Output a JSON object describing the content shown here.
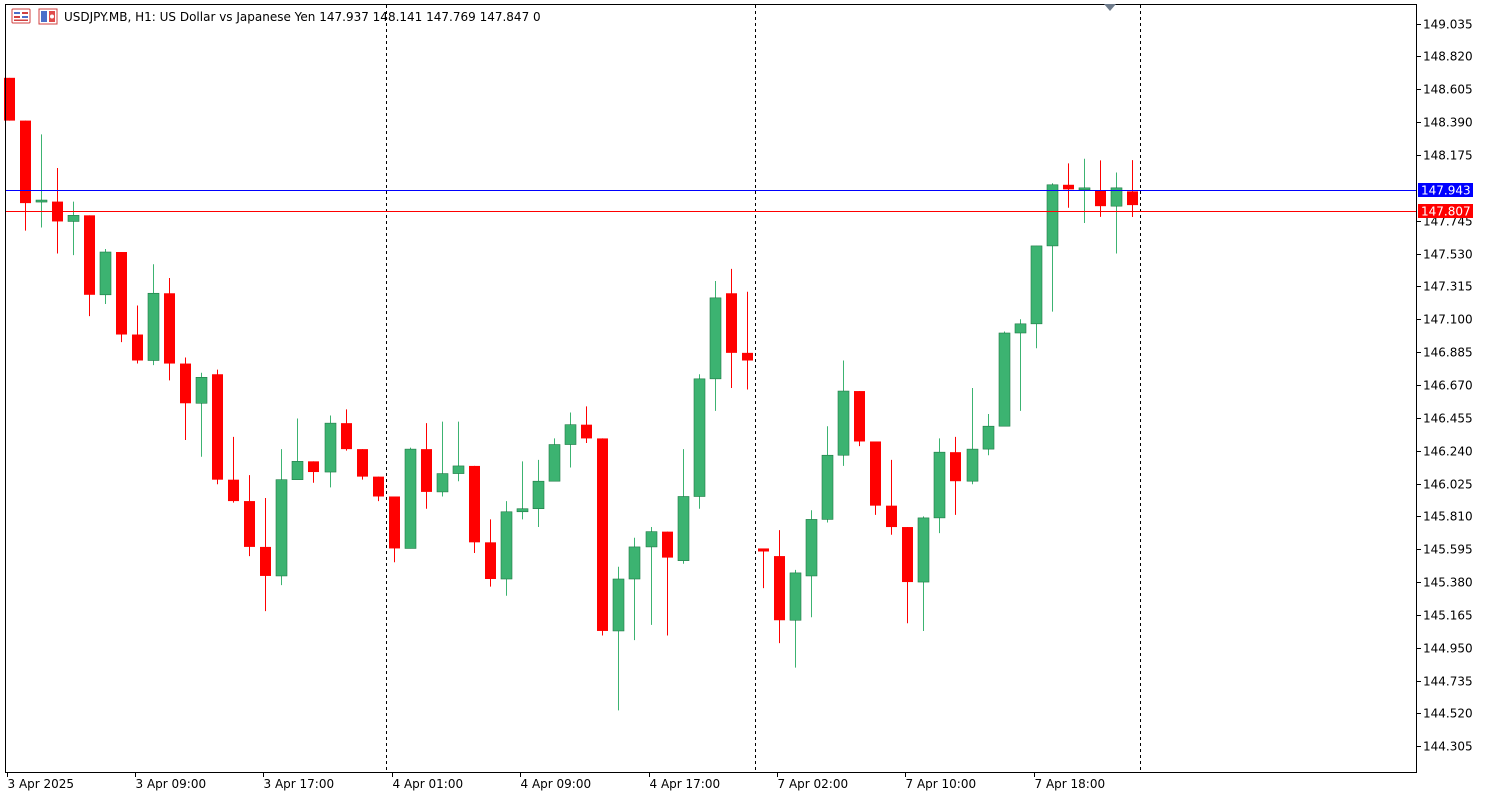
{
  "header": {
    "symbol": "USDJPY.MB",
    "timeframe": "H1",
    "description": "US Dollar vs Japanese Yen",
    "open": "147.937",
    "high": "148.141",
    "low": "147.769",
    "close": "147.847",
    "volume": "0"
  },
  "colors": {
    "background": "#ffffff",
    "bull": "#3cb371",
    "bear": "#ff0000",
    "bid_line": "#0000ff",
    "ask_line": "#ff0000",
    "axis": "#000000",
    "separator": "#000000"
  },
  "icons": [
    "chart-window-icon",
    "symbol-flag-icon",
    "shift-marker-icon"
  ],
  "price_lines": [
    {
      "name": "bid",
      "price": 147.943,
      "label": "147.943",
      "color": "#0000ff"
    },
    {
      "name": "ask",
      "price": 147.807,
      "label": "147.807",
      "color": "#ff0000"
    }
  ],
  "chart_data": {
    "type": "candlestick",
    "ylim": [
      144.15,
      149.15
    ],
    "y_ticks": [
      "149.035",
      "148.820",
      "148.605",
      "148.390",
      "148.175",
      "147.745",
      "147.530",
      "147.315",
      "147.100",
      "146.885",
      "146.670",
      "146.455",
      "146.240",
      "146.025",
      "145.810",
      "145.595",
      "145.380",
      "145.165",
      "144.950",
      "144.735",
      "144.520",
      "144.305"
    ],
    "x_ticks": [
      {
        "label": "3 Apr 2025",
        "index": 0
      },
      {
        "label": "3 Apr 09:00",
        "index": 8
      },
      {
        "label": "3 Apr 17:00",
        "index": 16
      },
      {
        "label": "4 Apr 01:00",
        "index": 24
      },
      {
        "label": "4 Apr 09:00",
        "index": 32
      },
      {
        "label": "4 Apr 17:00",
        "index": 40
      },
      {
        "label": "7 Apr 02:00",
        "index": 48
      },
      {
        "label": "7 Apr 10:00",
        "index": 56
      },
      {
        "label": "7 Apr 18:00",
        "index": 64
      }
    ],
    "separators": [
      23,
      46,
      70
    ],
    "candles": [
      [
        148.68,
        148.68,
        148.4,
        148.4
      ],
      [
        148.4,
        148.4,
        147.68,
        147.86
      ],
      [
        147.88,
        148.31,
        147.7,
        147.88
      ],
      [
        147.87,
        148.09,
        147.53,
        147.74
      ],
      [
        147.74,
        147.87,
        147.52,
        147.78
      ],
      [
        147.78,
        147.78,
        147.12,
        147.26
      ],
      [
        147.26,
        147.56,
        147.2,
        147.54
      ],
      [
        147.54,
        147.54,
        146.95,
        147.0
      ],
      [
        147.0,
        147.19,
        146.81,
        146.83
      ],
      [
        146.83,
        147.46,
        146.8,
        147.27
      ],
      [
        147.27,
        147.37,
        146.7,
        146.81
      ],
      [
        146.81,
        146.85,
        146.31,
        146.55
      ],
      [
        146.55,
        146.75,
        146.2,
        146.72
      ],
      [
        146.74,
        146.77,
        146.02,
        146.05
      ],
      [
        146.05,
        146.33,
        145.9,
        145.91
      ],
      [
        145.91,
        146.08,
        145.55,
        145.61
      ],
      [
        145.61,
        145.93,
        145.19,
        145.42
      ],
      [
        145.42,
        146.25,
        145.36,
        146.05
      ],
      [
        146.05,
        146.45,
        146.06,
        146.17
      ],
      [
        146.17,
        146.17,
        146.03,
        146.1
      ],
      [
        146.1,
        146.47,
        146.0,
        146.42
      ],
      [
        146.42,
        146.51,
        146.24,
        146.25
      ],
      [
        146.25,
        146.25,
        146.05,
        146.07
      ],
      [
        146.07,
        146.07,
        145.91,
        145.94
      ],
      [
        145.94,
        145.94,
        145.51,
        145.6
      ],
      [
        145.6,
        146.26,
        145.6,
        146.25
      ],
      [
        146.25,
        146.42,
        145.86,
        145.97
      ],
      [
        145.97,
        146.43,
        145.94,
        146.09
      ],
      [
        146.09,
        146.43,
        146.04,
        146.14
      ],
      [
        146.14,
        146.14,
        145.57,
        145.64
      ],
      [
        145.64,
        145.79,
        145.35,
        145.4
      ],
      [
        145.4,
        145.91,
        145.29,
        145.84
      ],
      [
        145.84,
        146.17,
        145.79,
        145.86
      ],
      [
        145.86,
        146.18,
        145.74,
        146.04
      ],
      [
        146.04,
        146.32,
        146.04,
        146.28
      ],
      [
        146.28,
        146.49,
        146.13,
        146.41
      ],
      [
        146.41,
        146.53,
        146.29,
        146.32
      ],
      [
        146.32,
        146.32,
        145.03,
        145.06
      ],
      [
        145.06,
        145.48,
        144.54,
        145.4
      ],
      [
        145.4,
        145.67,
        145.0,
        145.61
      ],
      [
        145.61,
        145.74,
        145.1,
        145.71
      ],
      [
        145.71,
        145.71,
        145.03,
        145.54
      ],
      [
        145.52,
        146.25,
        145.5,
        145.94
      ],
      [
        145.94,
        146.74,
        145.86,
        146.71
      ],
      [
        146.71,
        147.35,
        146.5,
        147.24
      ],
      [
        147.27,
        147.43,
        146.65,
        146.88
      ],
      [
        146.88,
        147.28,
        146.64,
        146.83
      ],
      [
        145.6,
        145.6,
        145.34,
        145.58
      ],
      [
        145.55,
        145.72,
        144.98,
        145.13
      ],
      [
        145.13,
        145.46,
        144.82,
        145.44
      ],
      [
        145.42,
        145.85,
        145.15,
        145.79
      ],
      [
        145.79,
        146.4,
        145.77,
        146.21
      ],
      [
        146.21,
        146.83,
        146.14,
        146.63
      ],
      [
        146.63,
        146.63,
        146.27,
        146.3
      ],
      [
        146.3,
        146.3,
        145.82,
        145.88
      ],
      [
        145.88,
        146.18,
        145.69,
        145.74
      ],
      [
        145.74,
        145.74,
        145.11,
        145.38
      ],
      [
        145.38,
        145.81,
        145.06,
        145.8
      ],
      [
        145.8,
        146.32,
        145.7,
        146.23
      ],
      [
        146.23,
        146.33,
        145.82,
        146.04
      ],
      [
        146.04,
        146.65,
        146.02,
        146.25
      ],
      [
        146.25,
        146.48,
        146.21,
        146.4
      ],
      [
        146.4,
        147.02,
        146.4,
        147.01
      ],
      [
        147.01,
        147.1,
        146.5,
        147.07
      ],
      [
        147.07,
        147.58,
        146.91,
        147.58
      ],
      [
        147.58,
        147.99,
        147.15,
        147.98
      ],
      [
        147.98,
        148.12,
        147.83,
        147.95
      ],
      [
        147.95,
        148.15,
        147.73,
        147.96
      ],
      [
        147.94,
        148.14,
        147.77,
        147.84
      ],
      [
        147.84,
        148.06,
        147.53,
        147.96
      ],
      [
        147.937,
        148.141,
        147.769,
        147.847
      ]
    ]
  }
}
